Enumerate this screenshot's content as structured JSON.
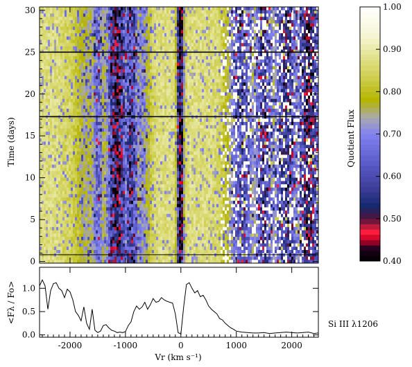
{
  "chart_data": [
    {
      "type": "heatmap",
      "xlabel": "Vr (km s⁻¹)",
      "ylabel": "Time (days)",
      "xlim": [
        -2550,
        2480
      ],
      "ylim": [
        -0.2,
        30.4
      ],
      "y_ticks": [
        0,
        5,
        10,
        15,
        20,
        25,
        30
      ],
      "reference_lines": [
        0.8,
        17.3,
        25.0
      ],
      "column_features": [
        {
          "v": -2050,
          "w": 120,
          "dark": 0.05
        },
        {
          "v": -1700,
          "w": 220,
          "dark": 0.25
        },
        {
          "v": -1500,
          "w": 120,
          "dark": 0.45
        },
        {
          "v": -1150,
          "w": 200,
          "dark": 0.75
        },
        {
          "v": -900,
          "w": 160,
          "dark": 0.6
        },
        {
          "v": -700,
          "w": 140,
          "dark": 0.35
        },
        {
          "v": -10,
          "w": 60,
          "dark": 0.95
        },
        {
          "v": 1100,
          "w": 260,
          "dark": 0.6
        },
        {
          "v": 1500,
          "w": 200,
          "dark": 0.65
        },
        {
          "v": 1900,
          "w": 250,
          "dark": 0.7
        },
        {
          "v": 2300,
          "w": 220,
          "dark": 0.85
        }
      ]
    },
    {
      "type": "line",
      "title": "Si III λ1206",
      "ylabel": "<Fλ / Fo>",
      "xlabel": "Vr (km s⁻¹)",
      "xlim": [
        -2550,
        2480
      ],
      "ylim": [
        -0.05,
        1.45
      ],
      "x_ticks": [
        -2000,
        -1000,
        0,
        1000,
        2000
      ],
      "y_ticks": [
        0.0,
        0.5,
        1.0
      ],
      "x": [
        -2550,
        -2500,
        -2450,
        -2400,
        -2350,
        -2300,
        -2250,
        -2200,
        -2150,
        -2100,
        -2050,
        -2000,
        -1950,
        -1900,
        -1850,
        -1800,
        -1750,
        -1700,
        -1650,
        -1600,
        -1550,
        -1500,
        -1450,
        -1400,
        -1350,
        -1300,
        -1250,
        -1200,
        -1150,
        -1100,
        -1050,
        -1000,
        -950,
        -900,
        -850,
        -800,
        -750,
        -700,
        -650,
        -600,
        -550,
        -500,
        -450,
        -400,
        -350,
        -300,
        -250,
        -200,
        -150,
        -100,
        -50,
        0,
        50,
        100,
        150,
        200,
        250,
        300,
        350,
        400,
        450,
        500,
        550,
        600,
        650,
        700,
        750,
        800,
        850,
        900,
        950,
        1000,
        1100,
        1200,
        1300,
        1400,
        1500,
        1600,
        1700,
        1800,
        1900,
        2000,
        2100,
        2200,
        2300,
        2400,
        2480
      ],
      "values": [
        1.05,
        1.18,
        1.05,
        0.55,
        0.95,
        1.1,
        1.12,
        1.0,
        0.95,
        0.8,
        0.98,
        0.92,
        0.75,
        0.5,
        0.42,
        0.3,
        0.6,
        0.25,
        0.12,
        0.55,
        0.1,
        0.05,
        0.08,
        0.2,
        0.22,
        0.15,
        0.1,
        0.08,
        0.05,
        0.06,
        0.05,
        0.07,
        0.2,
        0.28,
        0.5,
        0.62,
        0.55,
        0.6,
        0.7,
        0.55,
        0.65,
        0.78,
        0.7,
        0.72,
        0.8,
        0.75,
        0.72,
        0.7,
        0.68,
        0.45,
        0.05,
        0.02,
        0.6,
        1.08,
        1.12,
        1.0,
        0.9,
        0.95,
        0.82,
        0.85,
        0.75,
        0.62,
        0.55,
        0.5,
        0.45,
        0.35,
        0.32,
        0.25,
        0.2,
        0.15,
        0.12,
        0.08,
        0.06,
        0.05,
        0.04,
        0.04,
        0.05,
        0.03,
        0.04,
        0.05,
        0.06,
        0.05,
        0.04,
        0.05,
        0.06,
        0.03,
        0.04
      ]
    },
    {
      "type": "colorbar",
      "title": "Quotient Flux",
      "range": [
        0.4,
        1.0
      ],
      "ticks": [
        "1.00",
        "0.90",
        "0.80",
        "0.70",
        "0.60",
        "0.50",
        "0.40"
      ],
      "ylim": [
        0.4,
        1.0
      ]
    }
  ]
}
